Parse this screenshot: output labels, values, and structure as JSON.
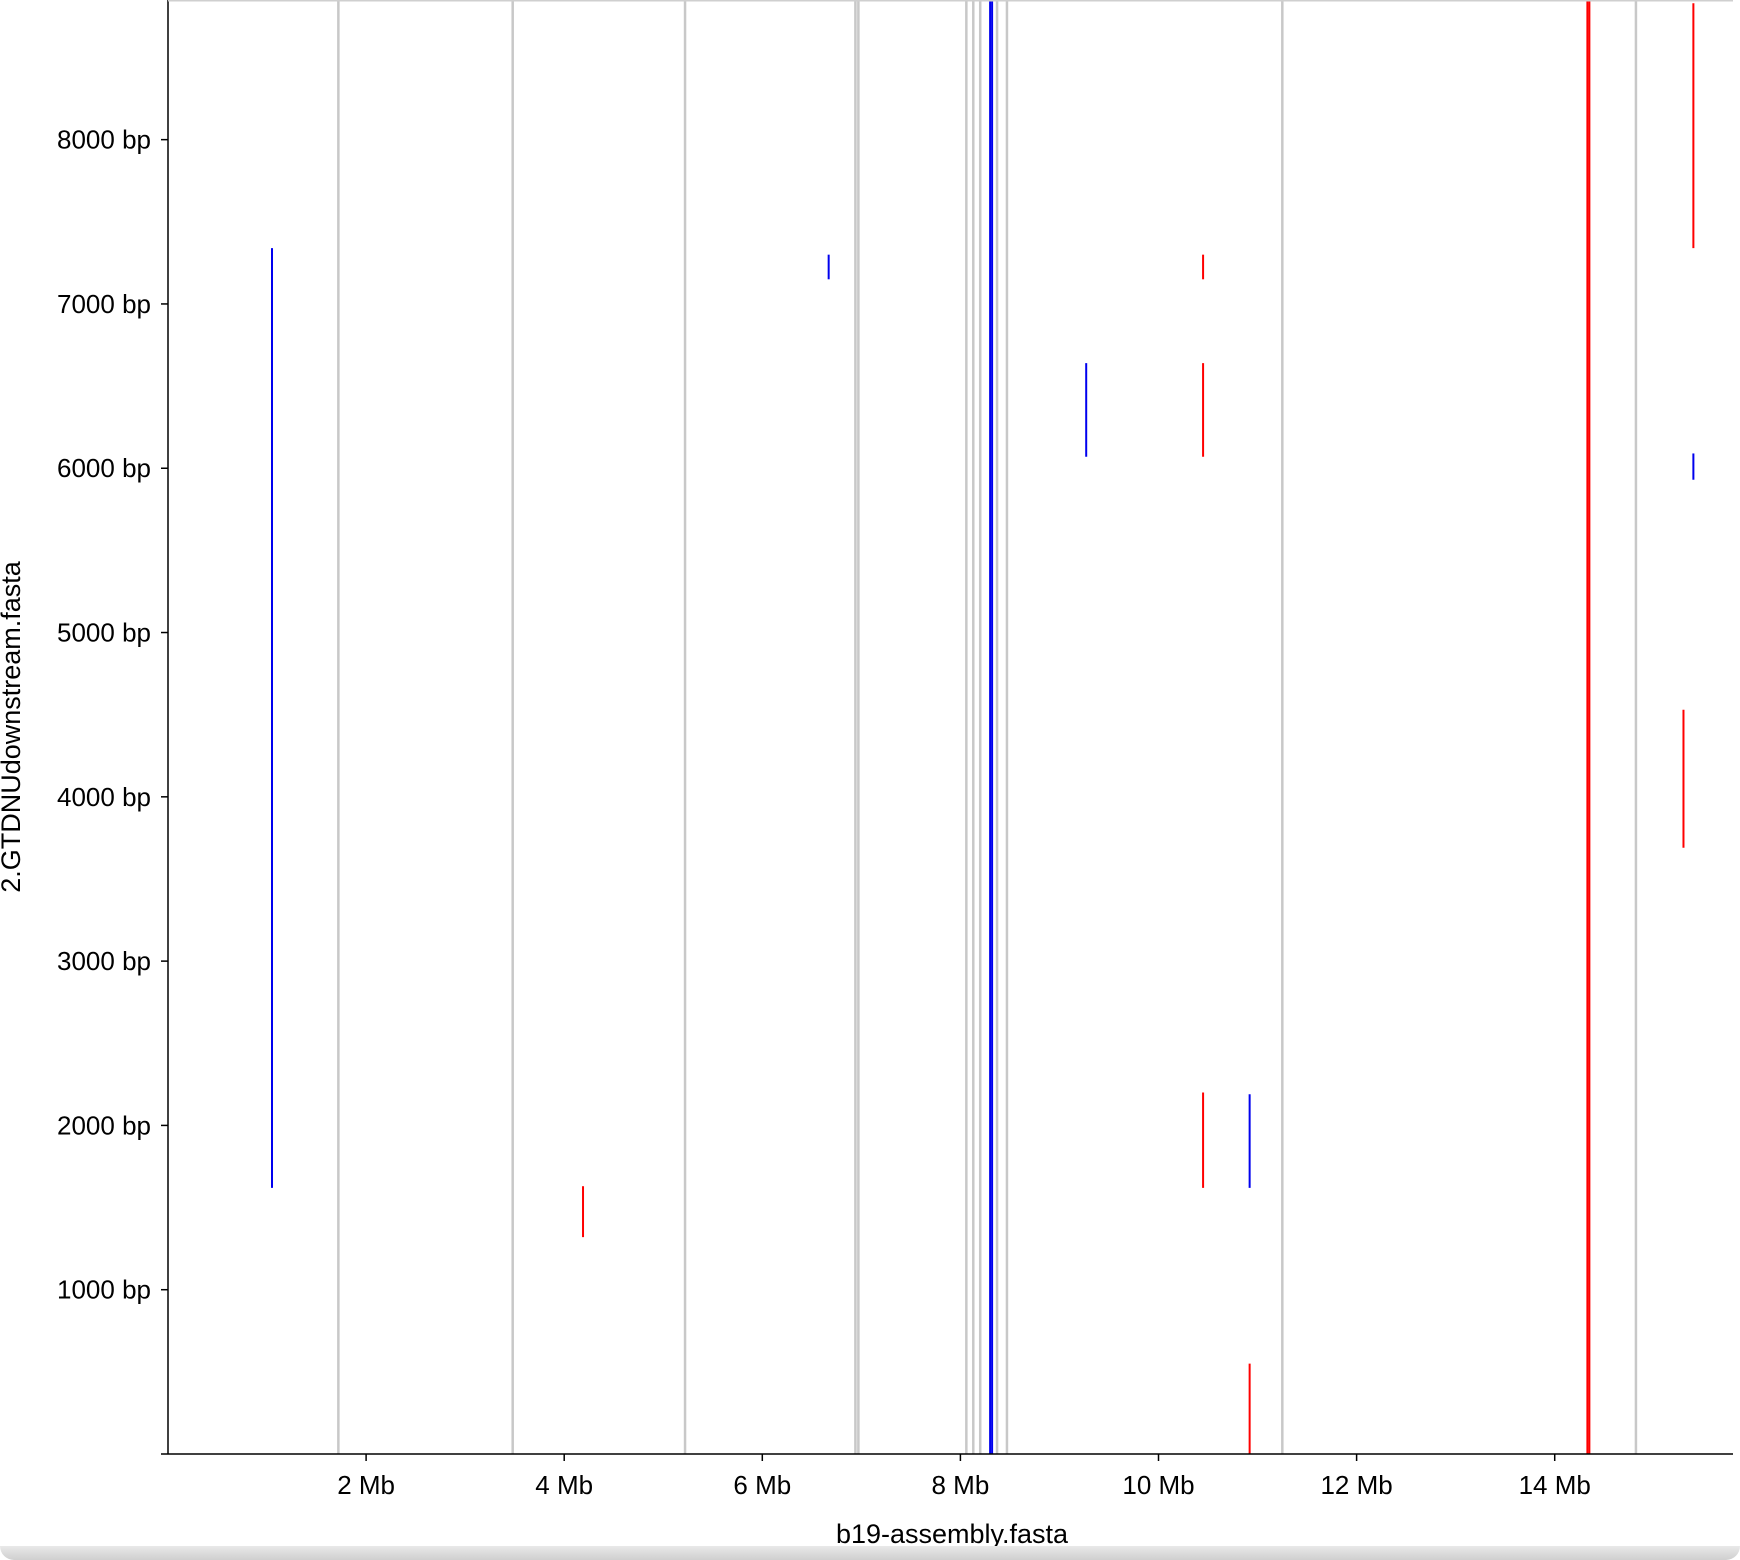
{
  "colors": {
    "forward": "#0000ee",
    "reverse": "#ff0000",
    "contig_boundary": "#c8c8c8",
    "axis": "#000000",
    "background": "#ffffff"
  },
  "chart_data": {
    "type": "scatter",
    "subtype": "dot-plot",
    "title": "",
    "xlabel": "b19-assembly.fasta",
    "ylabel": "2.GTDNUdownstream.fasta",
    "xlim_mb": [
      0,
      15.8
    ],
    "ylim_bp": [
      0,
      8850
    ],
    "x_ticks": [
      {
        "value": 2,
        "label": "2 Mb"
      },
      {
        "value": 4,
        "label": "4 Mb"
      },
      {
        "value": 6,
        "label": "6 Mb"
      },
      {
        "value": 8,
        "label": "8 Mb"
      },
      {
        "value": 10,
        "label": "10 Mb"
      },
      {
        "value": 12,
        "label": "12 Mb"
      },
      {
        "value": 14,
        "label": "14 Mb"
      }
    ],
    "y_ticks": [
      {
        "value": 1000,
        "label": "1000 bp"
      },
      {
        "value": 2000,
        "label": "2000 bp"
      },
      {
        "value": 3000,
        "label": "3000 bp"
      },
      {
        "value": 4000,
        "label": "4000 bp"
      },
      {
        "value": 5000,
        "label": "5000 bp"
      },
      {
        "value": 6000,
        "label": "6000 bp"
      },
      {
        "value": 7000,
        "label": "7000 bp"
      },
      {
        "value": 8000,
        "label": "8000 bp"
      }
    ],
    "contig_boundaries_mb": [
      1.72,
      3.48,
      5.22,
      6.94,
      6.97,
      8.06,
      8.13,
      8.2,
      8.37,
      8.47,
      11.25,
      14.82
    ],
    "series": [
      {
        "strand": "forward",
        "segments": [
          {
            "x": 1.05,
            "y0": 1620,
            "y1": 7340
          },
          {
            "x": 6.67,
            "y0": 7150,
            "y1": 7300
          },
          {
            "x": 8.3,
            "y0": 0,
            "y1": 8850
          },
          {
            "x": 8.32,
            "y0": 0,
            "y1": 8850
          },
          {
            "x": 9.27,
            "y0": 6070,
            "y1": 6640
          },
          {
            "x": 10.92,
            "y0": 1620,
            "y1": 2190
          },
          {
            "x": 15.4,
            "y0": 5930,
            "y1": 6090
          }
        ]
      },
      {
        "strand": "reverse",
        "segments": [
          {
            "x": 4.19,
            "y0": 1320,
            "y1": 1630
          },
          {
            "x": 10.45,
            "y0": 7150,
            "y1": 7300
          },
          {
            "x": 10.45,
            "y0": 6070,
            "y1": 6640
          },
          {
            "x": 10.45,
            "y0": 1620,
            "y1": 2200
          },
          {
            "x": 10.92,
            "y0": 0,
            "y1": 550
          },
          {
            "x": 14.33,
            "y0": 0,
            "y1": 8850
          },
          {
            "x": 14.35,
            "y0": 0,
            "y1": 8850
          },
          {
            "x": 15.3,
            "y0": 3690,
            "y1": 4530
          },
          {
            "x": 15.4,
            "y0": 7340,
            "y1": 8830
          }
        ]
      }
    ]
  }
}
